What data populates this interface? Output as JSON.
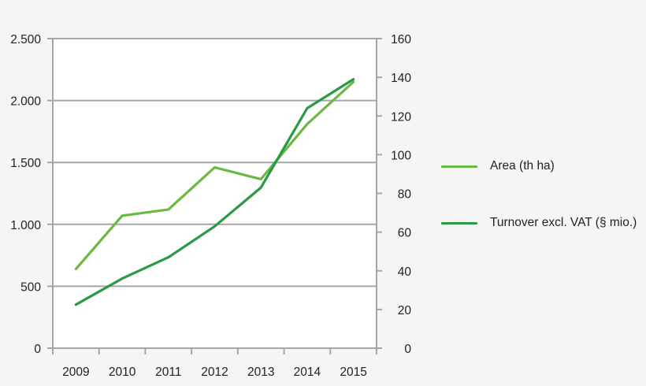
{
  "chart_data": {
    "type": "line",
    "title": "",
    "xlabel": "",
    "ylabel": "",
    "y2label": "",
    "categories": [
      "2009",
      "2010",
      "2011",
      "2012",
      "2013",
      "2014",
      "2015"
    ],
    "series": [
      {
        "name": "Area (th ha)",
        "axis": "left",
        "color": "#6ab943",
        "values": [
          640,
          1070,
          1120,
          1460,
          1365,
          1810,
          2150
        ]
      },
      {
        "name": "Turnover excl. VAT (§ mio.)",
        "axis": "right",
        "color": "#2a9a43",
        "values": [
          22.5,
          36,
          47,
          63,
          83,
          124,
          139
        ]
      }
    ],
    "ylim": [
      0,
      2500
    ],
    "y2lim": [
      0,
      160
    ],
    "yticks": [
      "0",
      "500",
      "1.000",
      "1.500",
      "2.000",
      "2.500"
    ],
    "y2ticks": [
      "0",
      "20",
      "40",
      "60",
      "80",
      "100",
      "120",
      "140",
      "160"
    ],
    "grid": true,
    "legend_position": "right"
  },
  "legend": {
    "items": [
      {
        "label": "Area (th ha)",
        "color": "#6ab943"
      },
      {
        "label": "Turnover excl. VAT (§ mio.)",
        "color": "#2a9a43"
      }
    ]
  }
}
